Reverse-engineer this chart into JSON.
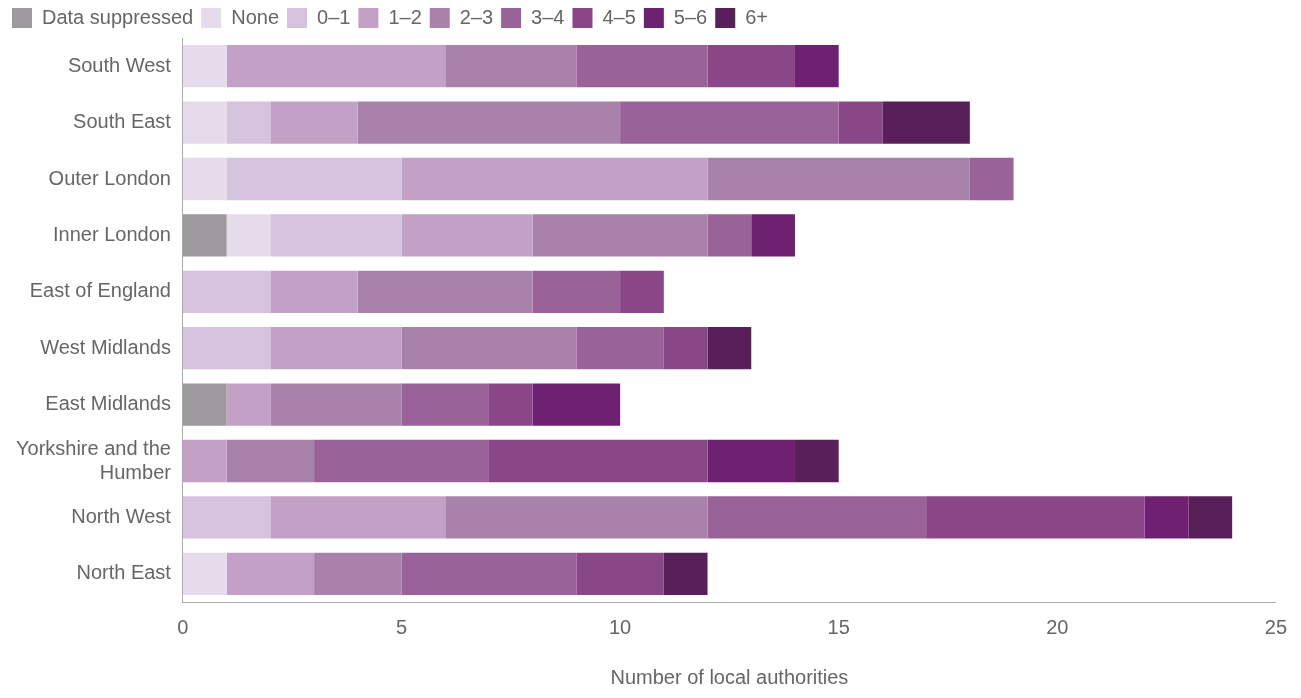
{
  "chart_data": {
    "type": "bar",
    "orientation": "horizontal",
    "stacked": true,
    "xlabel": "Number of local authorities",
    "categories": [
      "South West",
      "South East",
      "Outer London",
      "Inner London",
      "East of England",
      "West Midlands",
      "East Midlands",
      "Yorkshire and the Humber",
      "North West",
      "North East"
    ],
    "series": [
      {
        "name": "Data suppressed",
        "color": "#9d9a9d",
        "values": [
          0,
          0,
          0,
          1,
          0,
          0,
          1,
          0,
          0,
          0
        ]
      },
      {
        "name": "None",
        "color": "#e6dbea",
        "values": [
          1,
          1,
          1,
          1,
          0,
          0,
          0,
          0,
          0,
          1
        ]
      },
      {
        "name": "0–1",
        "color": "#d5c2dc",
        "values": [
          0,
          1,
          4,
          3,
          2,
          2,
          0,
          0,
          2,
          0
        ]
      },
      {
        "name": "1–2",
        "color": "#c3a1c6",
        "values": [
          5,
          2,
          7,
          3,
          2,
          3,
          1,
          1,
          4,
          2
        ]
      },
      {
        "name": "2–3",
        "color": "#a982ac",
        "values": [
          3,
          6,
          6,
          4,
          4,
          4,
          3,
          2,
          6,
          2
        ]
      },
      {
        "name": "3–4",
        "color": "#996299",
        "values": [
          3,
          5,
          1,
          1,
          2,
          2,
          2,
          4,
          5,
          4
        ]
      },
      {
        "name": "4–5",
        "color": "#894787",
        "values": [
          2,
          1,
          0,
          0,
          1,
          1,
          1,
          5,
          5,
          2
        ]
      },
      {
        "name": "5–6",
        "color": "#6f2171",
        "values": [
          1,
          0,
          0,
          1,
          0,
          0,
          2,
          2,
          1,
          0
        ]
      },
      {
        "name": "6+",
        "color": "#581f59",
        "values": [
          0,
          2,
          0,
          0,
          0,
          1,
          0,
          1,
          1,
          1
        ]
      }
    ],
    "xlim": [
      0,
      25
    ],
    "xticks": [
      0,
      5,
      10,
      15,
      20,
      25
    ],
    "grid": false,
    "legend": "top left"
  }
}
